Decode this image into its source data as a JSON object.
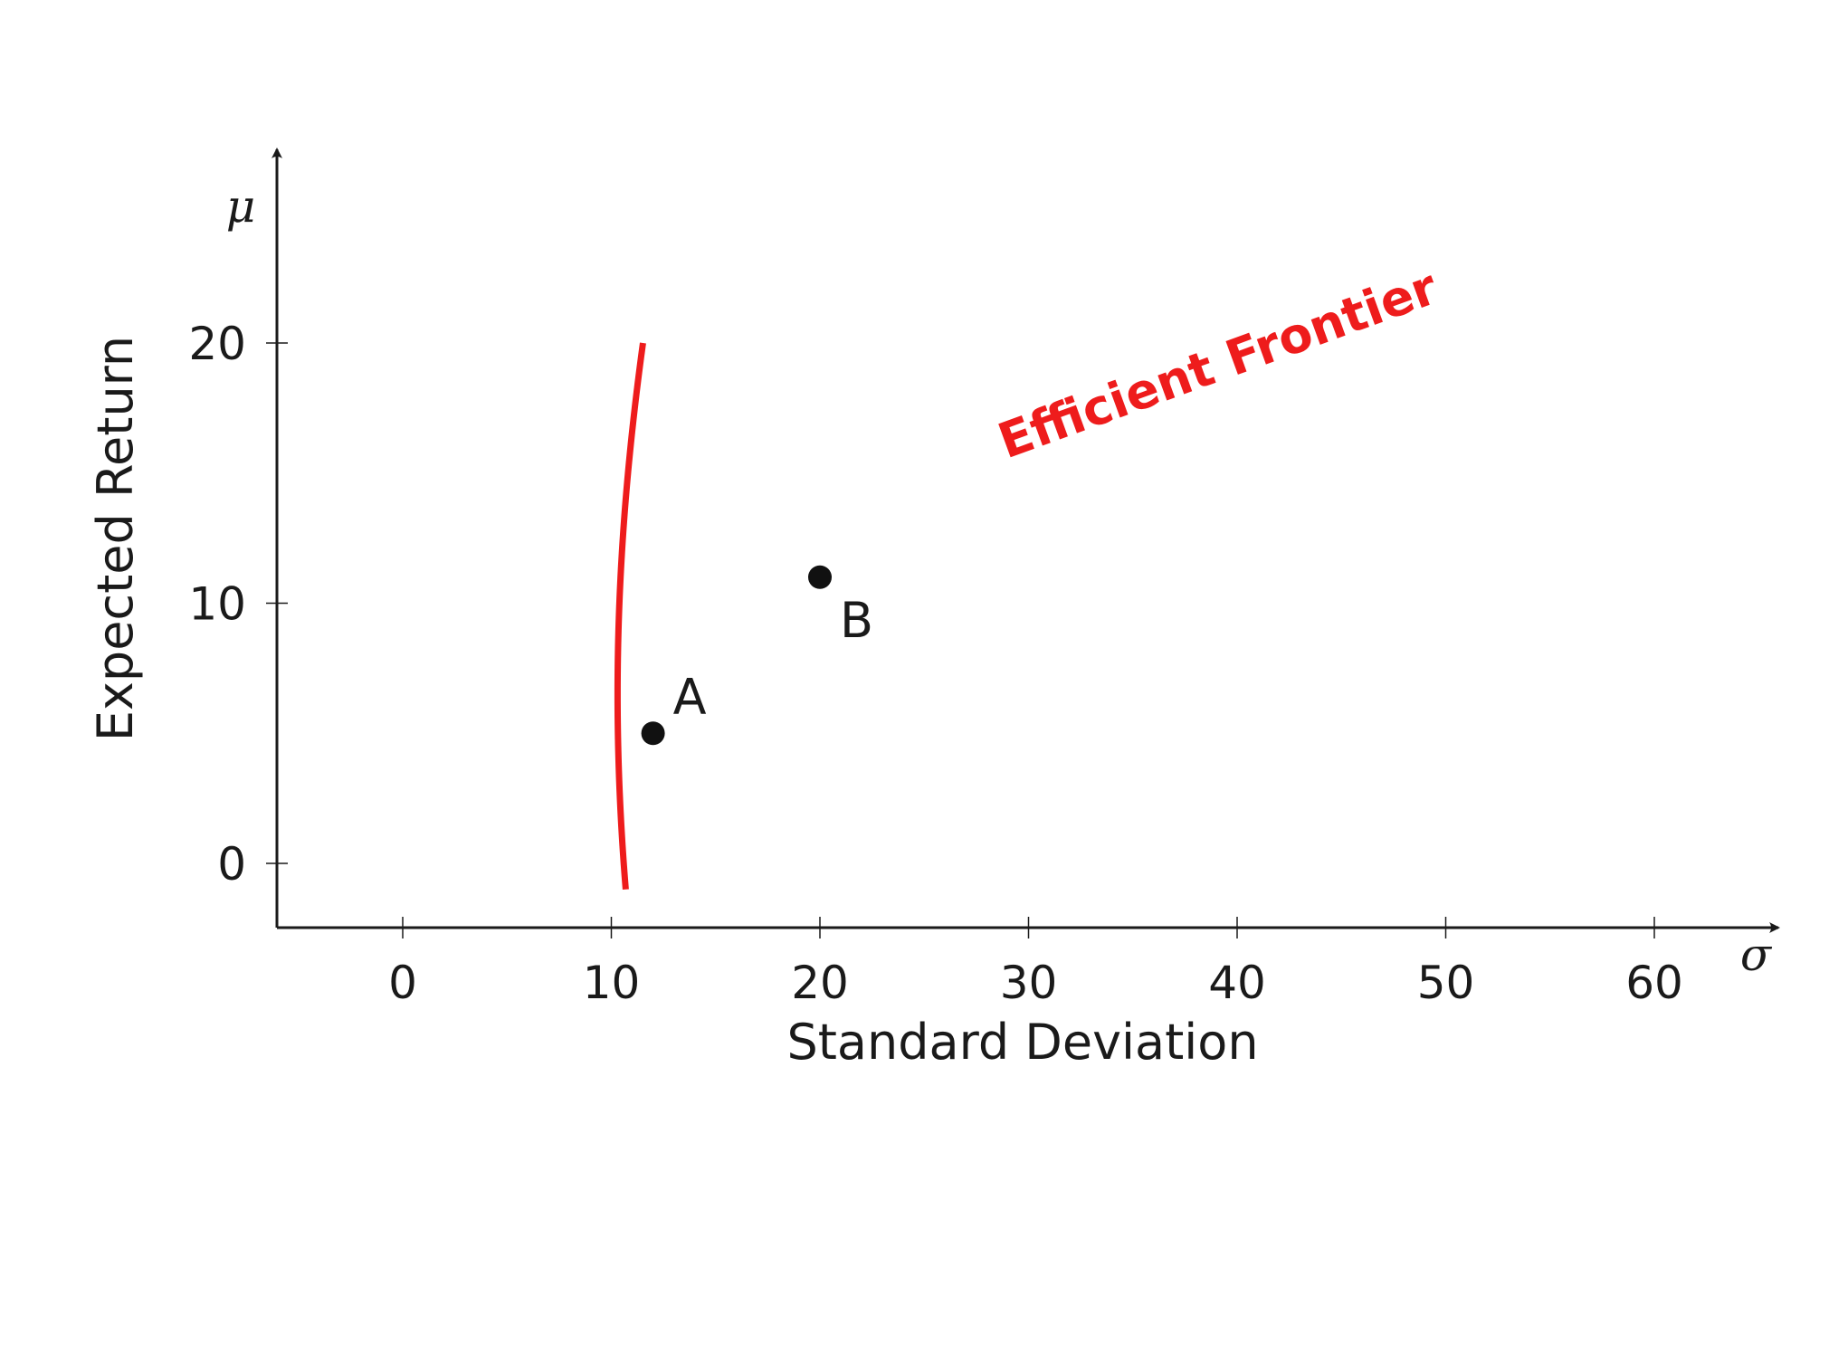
{
  "chart_data": {
    "type": "line",
    "xlabel": "Standard Deviation",
    "ylabel": "Expected Return",
    "x_symbol": "σ",
    "y_symbol": "μ",
    "xlim": [
      -6,
      66
    ],
    "ylim": [
      -2.5,
      27
    ],
    "x_ticks": [
      0,
      10,
      20,
      30,
      40,
      50,
      60
    ],
    "y_ticks": [
      0,
      10,
      20
    ],
    "grid": false,
    "series": [
      {
        "name": "Efficient Frontier",
        "color": "#ee1c1c",
        "frontier": {
          "min_sigma": 10.3,
          "mu_at_min": 6.5,
          "slope": 2.62
        },
        "y_range": [
          -1,
          20
        ]
      }
    ],
    "points": [
      {
        "label": "A",
        "x": 12,
        "y": 5
      },
      {
        "label": "B",
        "x": 20,
        "y": 11
      }
    ],
    "axis_color": "#1a1a1a"
  }
}
